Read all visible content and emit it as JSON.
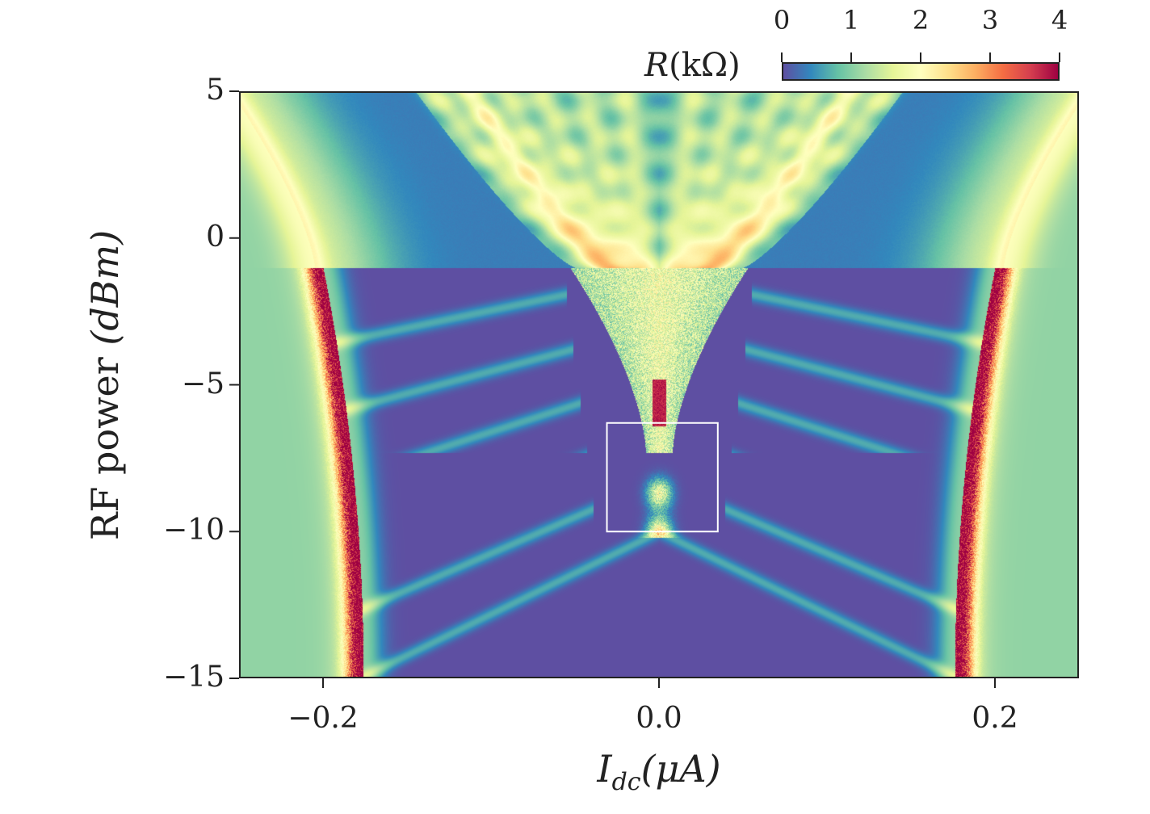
{
  "chart_data": {
    "type": "heatmap",
    "title": "",
    "xlabel": "I_dc(μA)",
    "xlabel_main": "I",
    "xlabel_sub": "dc",
    "xlabel_unit": "(μA)",
    "ylabel": "RF power (dBm)",
    "ylabel_main": "RF power",
    "ylabel_unit": "(dBm)",
    "xlim": [
      -0.25,
      0.25
    ],
    "ylim": [
      -15,
      5
    ],
    "xticks": [
      -0.2,
      0.0,
      0.2
    ],
    "xtick_labels": [
      "−0.2",
      "0.0",
      "0.2"
    ],
    "yticks": [
      5,
      0,
      -5,
      -10,
      -15
    ],
    "ytick_labels": [
      "5",
      "0",
      "−5",
      "−10",
      "−15"
    ],
    "colorbar": {
      "label": "R(kΩ)",
      "label_main": "R",
      "label_unit": "(kΩ)",
      "range": [
        0,
        4
      ],
      "ticks": [
        0,
        1,
        2,
        3,
        4
      ],
      "tick_labels": [
        "0",
        "1",
        "2",
        "3",
        "4"
      ],
      "colormap": "Spectral_r",
      "colors": [
        "#5e4fa2",
        "#3288bd",
        "#66c2a5",
        "#abdda4",
        "#e6f598",
        "#ffffbf",
        "#fee08b",
        "#fdae61",
        "#f46d43",
        "#d53e4f",
        "#9e0142"
      ],
      "placement": "top-right"
    },
    "highlight_box": {
      "x_range": [
        -0.031,
        0.035
      ],
      "y_range": [
        -10,
        -6.3
      ],
      "color": "#ffffff"
    },
    "grid": false
  }
}
